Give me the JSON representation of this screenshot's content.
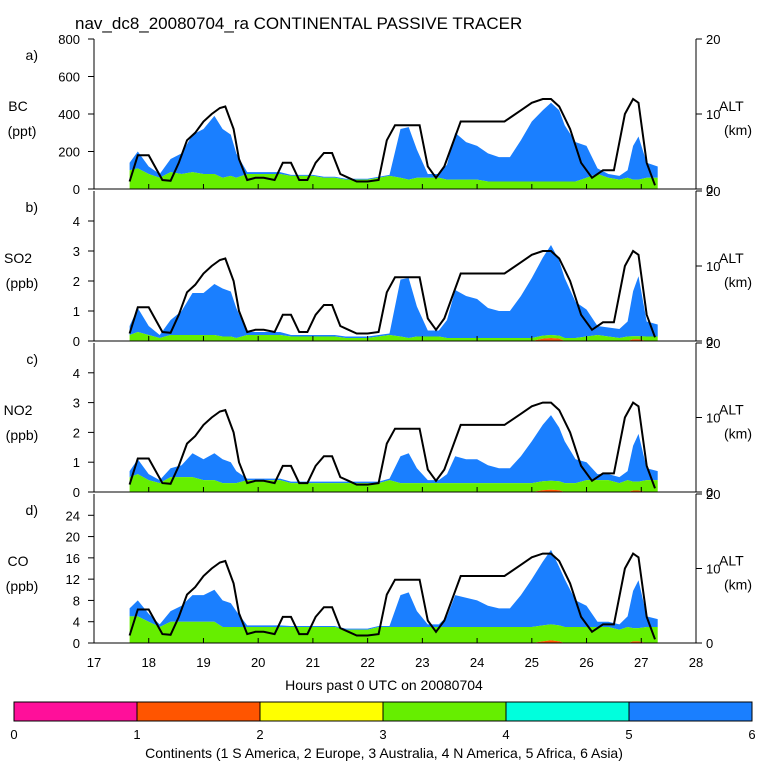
{
  "title": "nav_dc8_20080704_ra CONTINENTAL PASSIVE TRACER",
  "chart_data": {
    "type": "area",
    "xlabel": "Hours past 0 UTC on 20080704",
    "xlim": [
      17,
      28
    ],
    "xticks": [
      "17",
      "18",
      "19",
      "20",
      "21",
      "22",
      "23",
      "24",
      "25",
      "26",
      "27",
      "28"
    ],
    "alt_axis": {
      "label": "ALT",
      "unit": "(km)",
      "ylim": [
        0,
        20
      ],
      "ticks": [
        "0",
        "10",
        "20"
      ]
    },
    "altitude_track": {
      "x": [
        17.65,
        17.8,
        18.0,
        18.25,
        18.4,
        18.55,
        18.7,
        18.85,
        19.0,
        19.15,
        19.3,
        19.4,
        19.55,
        19.65,
        19.8,
        19.95,
        20.1,
        20.3,
        20.45,
        20.6,
        20.75,
        20.9,
        21.05,
        21.2,
        21.35,
        21.5,
        21.65,
        21.8,
        22.0,
        22.2,
        22.35,
        22.5,
        22.6,
        22.75,
        22.95,
        23.1,
        23.25,
        23.4,
        23.55,
        23.7,
        23.85,
        24.0,
        24.2,
        24.5,
        24.8,
        25.0,
        25.2,
        25.35,
        25.5,
        25.7,
        25.9,
        26.1,
        26.3,
        26.5,
        26.7,
        26.85,
        26.95,
        27.1,
        27.25
      ],
      "alt_km": [
        1.0,
        4.5,
        4.5,
        1.2,
        1.1,
        3.5,
        6.5,
        7.5,
        9.0,
        10.0,
        10.8,
        11.0,
        8.0,
        4.0,
        1.2,
        1.5,
        1.5,
        1.2,
        3.5,
        3.5,
        1.2,
        1.2,
        3.5,
        4.8,
        4.8,
        2.0,
        1.5,
        1.0,
        1.0,
        1.2,
        6.5,
        8.5,
        8.5,
        8.5,
        8.5,
        3.0,
        1.5,
        3.0,
        6.0,
        9.0,
        9.0,
        9.0,
        9.0,
        9.0,
        10.5,
        11.5,
        12.0,
        12.0,
        11.0,
        8.0,
        3.5,
        1.5,
        2.5,
        2.5,
        10.0,
        12.0,
        11.5,
        3.5,
        0.5
      ]
    },
    "continent_colorbar": {
      "label": "Continents (1 S America, 2 Europe, 3 Australia, 4 N America, 5 Africa, 6 Asia)",
      "ticks": [
        "0",
        "1",
        "2",
        "3",
        "4",
        "5",
        "6"
      ],
      "colors": [
        "#ff0f9a",
        "#ff5500",
        "#ffff00",
        "#66ee00",
        "#00ffdd",
        "#1a7fff"
      ]
    },
    "panels": [
      {
        "id": "a)",
        "name": "BC",
        "unit": "(ppt)",
        "ylim": [
          0,
          800
        ],
        "yticks": [
          "0",
          "200",
          "400",
          "600",
          "800"
        ],
        "x": [
          17.65,
          17.8,
          18.0,
          18.2,
          18.4,
          18.6,
          18.8,
          19.0,
          19.2,
          19.35,
          19.5,
          19.6,
          19.8,
          20.0,
          20.2,
          20.4,
          20.6,
          20.8,
          21.0,
          21.2,
          21.4,
          21.6,
          21.8,
          22.0,
          22.2,
          22.4,
          22.6,
          22.75,
          22.9,
          23.1,
          23.3,
          23.45,
          23.6,
          23.8,
          24.0,
          24.2,
          24.4,
          24.6,
          24.8,
          25.0,
          25.2,
          25.35,
          25.5,
          25.6,
          25.8,
          26.0,
          26.2,
          26.4,
          26.6,
          26.75,
          26.85,
          26.95,
          27.1,
          27.3
        ],
        "asia": [
          40,
          90,
          40,
          20,
          70,
          110,
          200,
          240,
          310,
          260,
          220,
          130,
          10,
          10,
          10,
          10,
          5,
          5,
          5,
          5,
          5,
          5,
          5,
          5,
          5,
          5,
          260,
          280,
          150,
          20,
          20,
          80,
          250,
          200,
          180,
          150,
          130,
          130,
          220,
          320,
          380,
          420,
          380,
          300,
          210,
          170,
          30,
          20,
          20,
          40,
          180,
          230,
          80,
          60
        ],
        "namerica": [
          100,
          110,
          80,
          60,
          90,
          80,
          90,
          80,
          80,
          60,
          70,
          60,
          80,
          80,
          80,
          80,
          70,
          70,
          70,
          60,
          60,
          50,
          50,
          50,
          60,
          70,
          60,
          50,
          60,
          60,
          60,
          50,
          50,
          50,
          50,
          40,
          40,
          40,
          40,
          40,
          40,
          40,
          40,
          40,
          40,
          60,
          80,
          60,
          50,
          60,
          50,
          50,
          60,
          60
        ],
        "europe": [
          0,
          0,
          0,
          0,
          0,
          0,
          0,
          0,
          0,
          0,
          0,
          0,
          0,
          0,
          0,
          0,
          0,
          0,
          0,
          0,
          0,
          0,
          0,
          0,
          0,
          0,
          0,
          0,
          0,
          0,
          0,
          0,
          0,
          0,
          0,
          0,
          0,
          0,
          0,
          0,
          0,
          0,
          0,
          0,
          0,
          0,
          0,
          0,
          0,
          0,
          0,
          0,
          0,
          0
        ]
      },
      {
        "id": "b)",
        "name": "SO2",
        "unit": "(ppb)",
        "ylim": [
          0,
          5
        ],
        "yticks": [
          "0",
          "1",
          "2",
          "3",
          "4"
        ],
        "x": [
          17.65,
          17.8,
          18.0,
          18.2,
          18.4,
          18.6,
          18.8,
          19.0,
          19.2,
          19.35,
          19.5,
          19.6,
          19.8,
          20.0,
          20.2,
          20.4,
          20.6,
          20.8,
          21.0,
          21.2,
          21.4,
          21.6,
          21.8,
          22.0,
          22.2,
          22.4,
          22.6,
          22.75,
          22.9,
          23.1,
          23.3,
          23.45,
          23.6,
          23.8,
          24.0,
          24.2,
          24.4,
          24.6,
          24.8,
          25.0,
          25.2,
          25.35,
          25.5,
          25.6,
          25.8,
          26.0,
          26.2,
          26.4,
          26.6,
          26.75,
          26.85,
          26.95,
          27.1,
          27.3
        ],
        "asia": [
          0.3,
          0.8,
          0.3,
          0.1,
          0.5,
          0.8,
          1.4,
          1.4,
          1.7,
          1.6,
          1.5,
          1.0,
          0.1,
          0.1,
          0.1,
          0.1,
          0.05,
          0.05,
          0.05,
          0.05,
          0.05,
          0.05,
          0.05,
          0.05,
          0.05,
          0.05,
          1.9,
          2.0,
          1.0,
          0.2,
          0.2,
          0.6,
          1.6,
          1.4,
          1.3,
          1.0,
          0.9,
          0.9,
          1.4,
          2.0,
          2.6,
          3.0,
          2.5,
          2.0,
          1.2,
          0.9,
          0.3,
          0.3,
          0.3,
          0.5,
          1.5,
          2.0,
          0.5,
          0.4
        ],
        "namerica": [
          0.2,
          0.3,
          0.2,
          0.1,
          0.2,
          0.2,
          0.2,
          0.2,
          0.2,
          0.15,
          0.15,
          0.1,
          0.2,
          0.2,
          0.2,
          0.2,
          0.15,
          0.15,
          0.15,
          0.15,
          0.15,
          0.1,
          0.1,
          0.1,
          0.15,
          0.2,
          0.15,
          0.1,
          0.15,
          0.15,
          0.15,
          0.1,
          0.1,
          0.1,
          0.1,
          0.1,
          0.1,
          0.1,
          0.1,
          0.1,
          0.1,
          0.1,
          0.1,
          0.1,
          0.1,
          0.15,
          0.2,
          0.15,
          0.1,
          0.15,
          0.1,
          0.1,
          0.15,
          0.15
        ],
        "europe": [
          0,
          0,
          0,
          0,
          0,
          0,
          0,
          0,
          0,
          0,
          0,
          0,
          0,
          0,
          0,
          0,
          0,
          0,
          0,
          0,
          0,
          0,
          0,
          0,
          0,
          0,
          0,
          0,
          0,
          0,
          0,
          0,
          0,
          0,
          0,
          0,
          0,
          0,
          0,
          0,
          0.08,
          0.1,
          0.08,
          0,
          0,
          0,
          0,
          0,
          0,
          0,
          0.06,
          0.06,
          0,
          0
        ]
      },
      {
        "id": "c)",
        "name": "NO2",
        "unit": "(ppb)",
        "ylim": [
          0,
          5
        ],
        "yticks": [
          "0",
          "1",
          "2",
          "3",
          "4"
        ],
        "x": [
          17.65,
          17.8,
          18.0,
          18.2,
          18.4,
          18.6,
          18.8,
          19.0,
          19.2,
          19.35,
          19.5,
          19.6,
          19.8,
          20.0,
          20.2,
          20.4,
          20.6,
          20.8,
          21.0,
          21.2,
          21.4,
          21.6,
          21.8,
          22.0,
          22.2,
          22.4,
          22.6,
          22.75,
          22.9,
          23.1,
          23.3,
          23.45,
          23.6,
          23.8,
          24.0,
          24.2,
          24.4,
          24.6,
          24.8,
          25.0,
          25.2,
          25.35,
          25.5,
          25.6,
          25.8,
          26.0,
          26.2,
          26.4,
          26.6,
          26.75,
          26.85,
          26.95,
          27.1,
          27.3
        ],
        "asia": [
          0.2,
          0.5,
          0.2,
          0.1,
          0.3,
          0.4,
          0.8,
          0.7,
          0.9,
          0.8,
          0.7,
          0.4,
          0.05,
          0.05,
          0.05,
          0.05,
          0.05,
          0.05,
          0.05,
          0.05,
          0.05,
          0.05,
          0.05,
          0.05,
          0.05,
          0.05,
          0.9,
          1.0,
          0.5,
          0.1,
          0.1,
          0.3,
          0.9,
          0.8,
          0.8,
          0.6,
          0.5,
          0.5,
          0.9,
          1.4,
          1.9,
          2.2,
          1.8,
          1.4,
          0.8,
          0.6,
          0.2,
          0.2,
          0.2,
          0.3,
          1.2,
          1.6,
          0.4,
          0.3
        ],
        "namerica": [
          0.5,
          0.6,
          0.4,
          0.3,
          0.5,
          0.5,
          0.5,
          0.4,
          0.4,
          0.3,
          0.3,
          0.3,
          0.4,
          0.4,
          0.4,
          0.4,
          0.3,
          0.3,
          0.3,
          0.3,
          0.3,
          0.3,
          0.3,
          0.3,
          0.3,
          0.4,
          0.3,
          0.3,
          0.3,
          0.3,
          0.3,
          0.3,
          0.3,
          0.3,
          0.3,
          0.3,
          0.3,
          0.3,
          0.3,
          0.3,
          0.3,
          0.3,
          0.3,
          0.3,
          0.3,
          0.4,
          0.4,
          0.4,
          0.3,
          0.4,
          0.3,
          0.3,
          0.4,
          0.4
        ],
        "europe": [
          0,
          0,
          0,
          0,
          0,
          0,
          0,
          0,
          0,
          0,
          0,
          0,
          0,
          0,
          0,
          0,
          0,
          0,
          0,
          0,
          0,
          0,
          0,
          0,
          0,
          0,
          0,
          0,
          0,
          0,
          0,
          0,
          0,
          0,
          0,
          0,
          0,
          0,
          0,
          0,
          0.06,
          0.08,
          0.06,
          0,
          0,
          0,
          0,
          0,
          0,
          0,
          0.05,
          0.05,
          0,
          0
        ]
      },
      {
        "id": "d)",
        "name": "CO",
        "unit": "(ppb)",
        "ylim": [
          0,
          28
        ],
        "yticks": [
          "0",
          "4",
          "8",
          "12",
          "16",
          "20",
          "24"
        ],
        "x": [
          17.65,
          17.8,
          18.0,
          18.2,
          18.4,
          18.6,
          18.8,
          19.0,
          19.2,
          19.35,
          19.5,
          19.6,
          19.8,
          20.0,
          20.2,
          20.4,
          20.6,
          20.8,
          21.0,
          21.2,
          21.4,
          21.6,
          21.8,
          22.0,
          22.2,
          22.4,
          22.6,
          22.75,
          22.9,
          23.1,
          23.3,
          23.45,
          23.6,
          23.8,
          24.0,
          24.2,
          24.4,
          24.6,
          24.8,
          25.0,
          25.2,
          25.35,
          25.5,
          25.6,
          25.8,
          26.0,
          26.2,
          26.4,
          26.6,
          26.75,
          26.85,
          26.95,
          27.1,
          27.3
        ],
        "asia": [
          1.5,
          3,
          1.5,
          0.5,
          2,
          3,
          5,
          5,
          6,
          5,
          4.5,
          3,
          0.3,
          0.3,
          0.3,
          0.3,
          0.2,
          0.2,
          0.2,
          0.2,
          0.2,
          0.2,
          0.2,
          0.2,
          0.2,
          0.2,
          6,
          6.5,
          3,
          0.5,
          0.5,
          2,
          6,
          5.5,
          5,
          4,
          3.5,
          3.5,
          6,
          9,
          12,
          14,
          11,
          9,
          5,
          4,
          1,
          1,
          1,
          2,
          7,
          9,
          2,
          1.5
        ],
        "namerica": [
          5,
          5,
          4,
          3,
          4,
          4,
          4,
          4,
          4,
          3,
          3,
          3,
          3,
          3,
          3,
          3,
          3,
          3,
          3,
          3,
          3,
          2.5,
          2.5,
          2.5,
          3,
          3,
          3,
          3,
          3,
          3,
          3,
          3,
          3,
          3,
          3,
          3,
          3,
          3,
          3,
          3,
          3,
          3,
          3,
          3,
          3,
          3,
          3,
          3,
          2.5,
          3,
          2.5,
          2.5,
          3,
          3
        ],
        "europe": [
          0,
          0,
          0,
          0,
          0,
          0,
          0,
          0,
          0,
          0,
          0,
          0,
          0,
          0,
          0,
          0,
          0,
          0,
          0,
          0,
          0,
          0,
          0,
          0,
          0,
          0,
          0,
          0,
          0,
          0,
          0,
          0,
          0,
          0,
          0,
          0,
          0,
          0,
          0,
          0,
          0.3,
          0.5,
          0.3,
          0,
          0,
          0,
          0,
          0,
          0,
          0,
          0.3,
          0.3,
          0,
          0
        ]
      }
    ]
  }
}
